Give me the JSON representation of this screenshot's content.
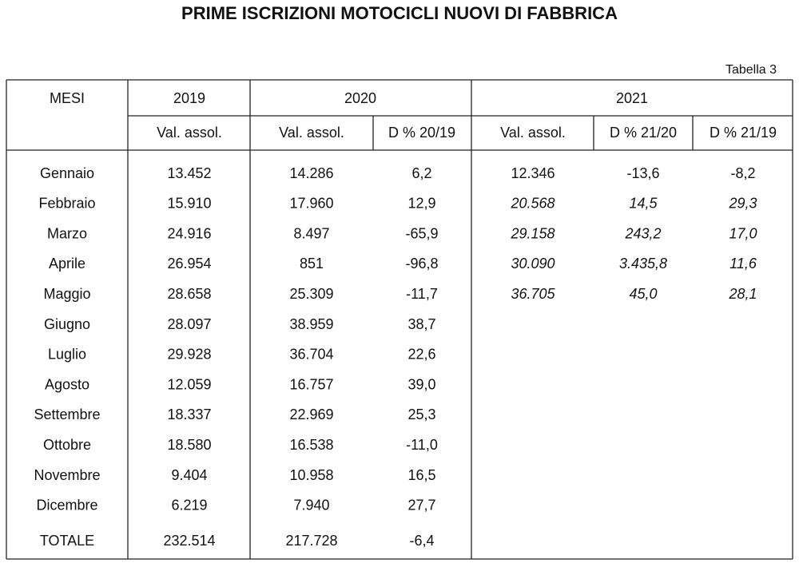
{
  "header": {
    "title": "PRIME ISCRIZIONI MOTOCICLI NUOVI DI FABBRICA",
    "table_label": "Tabella 3"
  },
  "table": {
    "group_headers": [
      "MESI",
      "2019",
      "2020",
      "2021"
    ],
    "sub_headers": [
      "Val. assol.",
      "Val. assol.",
      "D % 20/19",
      "Val. assol.",
      "D % 21/20",
      "D % 21/19"
    ],
    "rows": [
      [
        "Gennaio",
        "13.452",
        "14.286",
        "6,2",
        "12.346",
        "-13,6",
        "-8,2"
      ],
      [
        "Febbraio",
        "15.910",
        "17.960",
        "12,9",
        "20.568",
        "14,5",
        "29,3"
      ],
      [
        "Marzo",
        "24.916",
        "8.497",
        "-65,9",
        "29.158",
        "243,2",
        "17,0"
      ],
      [
        "Aprile",
        "26.954",
        "851",
        "-96,8",
        "30.090",
        "3.435,8",
        "11,6"
      ],
      [
        "Maggio",
        "28.658",
        "25.309",
        "-11,7",
        "36.705",
        "45,0",
        "28,1"
      ],
      [
        "Giugno",
        "28.097",
        "38.959",
        "38,7",
        null,
        null,
        null
      ],
      [
        "Luglio",
        "29.928",
        "36.704",
        "22,6",
        null,
        null,
        null
      ],
      [
        "Agosto",
        "12.059",
        "16.757",
        "39,0",
        null,
        null,
        null
      ],
      [
        "Settembre",
        "18.337",
        "22.969",
        "25,3",
        null,
        null,
        null
      ],
      [
        "Ottobre",
        "18.580",
        "16.538",
        "-11,0",
        null,
        null,
        null
      ],
      [
        "Novembre",
        "9.404",
        "10.958",
        "16,5",
        null,
        null,
        null
      ],
      [
        "Dicembre",
        "6.219",
        "7.940",
        "27,7",
        null,
        null,
        null
      ]
    ],
    "total": [
      "TOTALE",
      "232.514",
      "217.728",
      "-6,4"
    ]
  }
}
